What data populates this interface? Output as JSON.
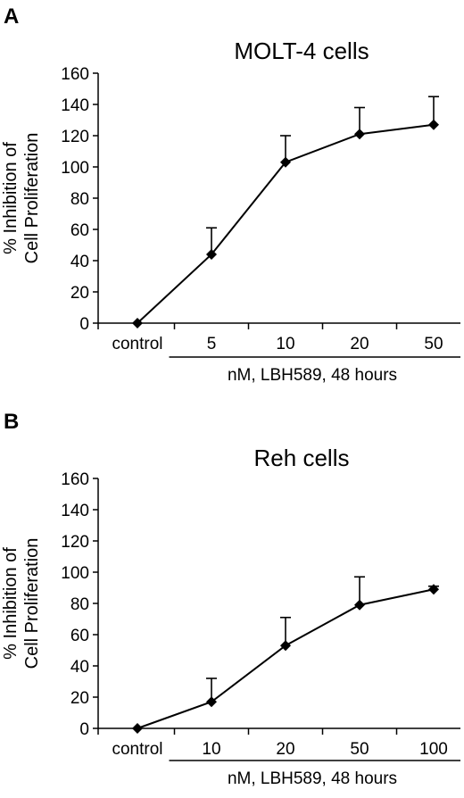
{
  "chart_data": [
    {
      "type": "line",
      "panel": "A",
      "title": "MOLT-4 cells",
      "ylabel": "% Inhibition of\nCell Proliferation",
      "xlabel": "nM, LBH589, 48 hours",
      "categories": [
        "control",
        "5",
        "10",
        "20",
        "50"
      ],
      "values": [
        0,
        44,
        103,
        121,
        127
      ],
      "error_upper": [
        0,
        17,
        17,
        17,
        18
      ],
      "ylim": [
        0,
        160
      ],
      "yticks": [
        0,
        20,
        40,
        60,
        80,
        100,
        120,
        140,
        160
      ],
      "grid": false,
      "color": "#000000"
    },
    {
      "type": "line",
      "panel": "B",
      "title": "Reh cells",
      "ylabel": "% Inhibition of\nCell Proliferation",
      "xlabel": "nM, LBH589, 48 hours",
      "categories": [
        "control",
        "10",
        "20",
        "50",
        "100"
      ],
      "values": [
        0,
        17,
        53,
        79,
        89
      ],
      "error_upper": [
        0,
        15,
        18,
        18,
        2
      ],
      "ylim": [
        0,
        160
      ],
      "yticks": [
        0,
        20,
        40,
        60,
        80,
        100,
        120,
        140,
        160
      ],
      "grid": false,
      "color": "#000000"
    }
  ]
}
